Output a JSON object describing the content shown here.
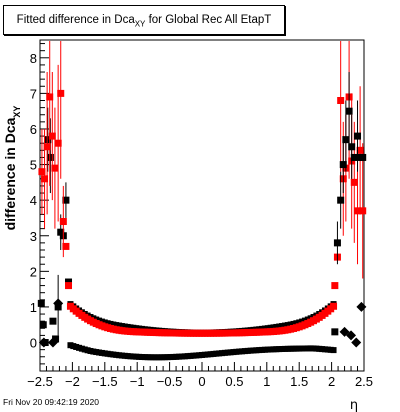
{
  "chart_data": {
    "type": "scatter",
    "title_main": "Fitted difference in Dca",
    "title_sub": "XY",
    "title_rest": " for Global Rec All EtapT",
    "ylabel_main": "difference in Dca",
    "ylabel_sub": "XY",
    "xlabel": "η",
    "footer": "Fri Nov 20 09:42:19 2020",
    "xlim": [
      -2.5,
      2.5
    ],
    "ylim": [
      -0.8,
      8.5
    ],
    "x_ticks": [
      -2.5,
      -2,
      -1.5,
      -1,
      -0.5,
      0,
      0.5,
      1,
      1.5,
      2,
      2.5
    ],
    "x_tick_labels": [
      "−2.5",
      "−2",
      "−1.5",
      "−1",
      "−0.5",
      "0",
      "0.5",
      "1",
      "1.5",
      "2",
      "2.5"
    ],
    "y_ticks": [
      0,
      1,
      2,
      3,
      4,
      5,
      6,
      7,
      8
    ],
    "y_tick_labels": [
      "0",
      "1",
      "2",
      "3",
      "4",
      "5",
      "6",
      "7",
      "8"
    ],
    "grid": false,
    "series": [
      {
        "color": "#000000",
        "marker": "square",
        "points": [
          [
            -2.48,
            1.1
          ],
          [
            -2.45,
            0.5
          ],
          [
            -2.42,
            0.0
          ],
          [
            -2.38,
            5.7
          ],
          [
            -2.34,
            5.2
          ],
          [
            -2.3,
            0.6
          ],
          [
            -2.26,
            0.1
          ],
          [
            -2.22,
            1.0
          ],
          [
            -2.18,
            3.1
          ],
          [
            -2.14,
            3.0
          ],
          [
            -2.1,
            4.0
          ],
          [
            -2.06,
            1.7
          ]
        ],
        "errors": [
          [
            -2.38,
            4.8,
            6.6
          ],
          [
            -2.34,
            4.2,
            6.3
          ],
          [
            -2.22,
            0.2,
            1.9
          ],
          [
            -2.18,
            2.6,
            3.6
          ],
          [
            -2.1,
            3.5,
            4.5
          ]
        ],
        "curves": [
          {
            "x0": -2.03,
            "x1": 2.03,
            "n": 92,
            "kind": "upper"
          },
          {
            "x0": -2.03,
            "x1": 2.03,
            "n": 92,
            "kind": "lower"
          }
        ]
      },
      {
        "color": "#ff0000",
        "marker": "square",
        "points": [
          [
            -2.47,
            4.8
          ],
          [
            -2.43,
            4.6
          ],
          [
            -2.39,
            5.5
          ],
          [
            -2.35,
            6.9
          ],
          [
            -2.31,
            5.8
          ],
          [
            -2.27,
            4.9
          ],
          [
            -2.22,
            5.6
          ],
          [
            -2.18,
            7.0
          ],
          [
            -2.14,
            3.4
          ],
          [
            -2.1,
            2.7
          ],
          [
            -2.06,
            1.6
          ],
          [
            2.05,
            1.6
          ],
          [
            2.09,
            2.4
          ],
          [
            2.14,
            6.8
          ],
          [
            2.18,
            4.6
          ],
          [
            2.22,
            4.9
          ],
          [
            2.27,
            6.9
          ],
          [
            2.31,
            5.1
          ],
          [
            2.35,
            4.5
          ],
          [
            2.4,
            3.7
          ],
          [
            2.44,
            5.4
          ],
          [
            2.48,
            3.7
          ]
        ],
        "errors": [
          [
            -2.47,
            3.6,
            6.0
          ],
          [
            -2.43,
            3.2,
            6.0
          ],
          [
            -2.39,
            3.6,
            7.6
          ],
          [
            -2.35,
            4.4,
            8.5
          ],
          [
            -2.31,
            4.0,
            7.6
          ],
          [
            -2.27,
            3.2,
            6.6
          ],
          [
            -2.22,
            3.4,
            7.8
          ],
          [
            -2.18,
            4.6,
            8.5
          ],
          [
            -2.14,
            2.4,
            4.4
          ],
          [
            2.14,
            4.8,
            8.5
          ],
          [
            2.18,
            3.0,
            6.2
          ],
          [
            2.22,
            3.4,
            6.4
          ],
          [
            2.27,
            4.6,
            8.5
          ],
          [
            2.31,
            3.2,
            7.0
          ],
          [
            2.35,
            2.8,
            6.2
          ],
          [
            2.4,
            2.2,
            5.2
          ],
          [
            2.44,
            3.6,
            7.2
          ],
          [
            2.48,
            1.8,
            5.6
          ]
        ],
        "curves": [
          {
            "x0": -2.03,
            "x1": 2.03,
            "n": 92,
            "kind": "red"
          }
        ]
      },
      {
        "color": "#000000",
        "marker": "square",
        "points": [
          [
            2.05,
            0.3
          ],
          [
            2.09,
            2.8
          ],
          [
            2.14,
            4.0
          ],
          [
            2.18,
            5.0
          ],
          [
            2.22,
            5.7
          ],
          [
            2.27,
            6.5
          ],
          [
            2.31,
            5.5
          ],
          [
            2.35,
            5.2
          ],
          [
            2.4,
            5.8
          ],
          [
            2.44,
            5.2
          ],
          [
            2.48,
            5.2
          ]
        ],
        "errors": [
          [
            2.09,
            2.2,
            3.4
          ],
          [
            2.14,
            3.2,
            4.8
          ],
          [
            2.18,
            4.2,
            5.8
          ],
          [
            2.22,
            4.8,
            6.8
          ],
          [
            2.27,
            5.4,
            7.6
          ],
          [
            2.31,
            4.6,
            6.4
          ],
          [
            2.4,
            4.8,
            6.8
          ]
        ]
      },
      {
        "color": "#000000",
        "marker": "diamond",
        "points": [
          [
            -2.44,
            0.0
          ],
          [
            -2.22,
            1.1
          ],
          [
            -2.3,
            0.0
          ],
          [
            2.2,
            0.3
          ],
          [
            2.3,
            0.2
          ],
          [
            2.38,
            0.0
          ],
          [
            2.46,
            1.0
          ]
        ],
        "errors": []
      }
    ]
  }
}
